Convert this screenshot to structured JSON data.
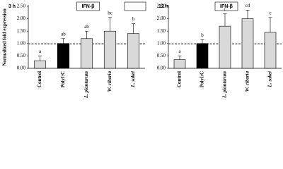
{
  "chart_data": [
    {
      "type": "bar",
      "title": "3 h",
      "subtitle": "IFN-β",
      "ylabel": "Normalized fold expression",
      "categories": [
        "Control",
        "PolyI:C",
        "L. plantarum",
        "W. cibaria",
        "L. sakei"
      ],
      "values": [
        0.3,
        1.0,
        1.2,
        1.5,
        1.4
      ],
      "errors": [
        0.2,
        0.2,
        0.3,
        0.55,
        0.4
      ],
      "letters": [
        "a",
        "ab",
        "ab",
        "bc",
        "b"
      ],
      "colors": [
        "#d9d9d9",
        "#000000",
        "#d9d9d9",
        "#d9d9d9",
        "#d9d9d9"
      ],
      "ylim": [
        0,
        2.5
      ],
      "yticks": [
        {
          "value": 0,
          "label": "0.00"
        },
        {
          "value": 0.5,
          "label": "0.50"
        },
        {
          "value": 1,
          "label": "1.00"
        },
        {
          "value": 1.5,
          "label": "1.50"
        },
        {
          "value": 2,
          "label": "2.00"
        },
        {
          "value": 2.5,
          "label": "2.50"
        }
      ],
      "ref_line": 1
    },
    {
      "type": "bar",
      "title": "12 h",
      "subtitle": "IFN-β",
      "categories": [
        "Control",
        "PolyI:C",
        "L. plantarum",
        "W. cibaria",
        "L. sakei"
      ],
      "values": [
        0.35,
        1.0,
        1.7,
        2.0,
        1.45
      ],
      "errors": [
        0.15,
        0.15,
        0.5,
        0.35,
        0.6
      ],
      "letters": [
        "a",
        "b",
        "c",
        "cd",
        "c"
      ],
      "colors": [
        "#d9d9d9",
        "#000000",
        "#d9d9d9",
        "#d9d9d9",
        "#d9d9d9"
      ],
      "ylim": [
        0,
        2.5
      ],
      "yticks": [
        {
          "value": 0,
          "label": "0.00"
        },
        {
          "value": 0.5,
          "label": "0.50"
        },
        {
          "value": 1,
          "label": "1.00"
        },
        {
          "value": 1.5,
          "label": "1.50"
        },
        {
          "value": 2,
          "label": "2.00"
        },
        {
          "value": 2.5,
          "label": "2.50"
        }
      ],
      "ref_line": 1
    }
  ]
}
